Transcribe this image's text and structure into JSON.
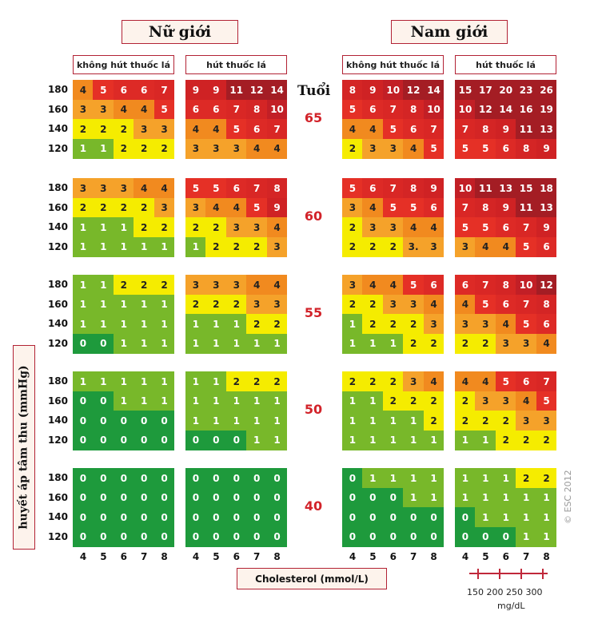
{
  "headers": {
    "female": "Nữ giới",
    "male": "Nam giới",
    "non_smoker": "không hút thuốc lá",
    "smoker": "hút thuốc lá",
    "age_title": "Tuổi"
  },
  "axes": {
    "ylabel": "huyết áp tâm thu (mmHg)",
    "xlabel": "Cholesterol (mmol/L)",
    "mgdl_ticks": "150 200 250 300",
    "mgdl_unit": "mg/dL",
    "copyright": "© ESC 2012"
  },
  "colors": {
    "0": "#1e9a3c",
    "1": "#78b82a",
    "2": "#f5ec00",
    "3": "#f5a22a",
    "4": "#f18a1f",
    "5": "#e53026",
    "6": "#dd2a26",
    "7": "#d92725",
    "8": "#d42525",
    "9": "#cf2224",
    "10": "#c21f26",
    "high": "#a41d24"
  },
  "chart_data": {
    "type": "heatmap",
    "ages": [
      "65",
      "60",
      "55",
      "50",
      "40"
    ],
    "sbp": [
      "180",
      "160",
      "140",
      "120"
    ],
    "cholesterol": [
      "4",
      "5",
      "6",
      "7",
      "8"
    ],
    "panels": {
      "female_non_smoker": {
        "65": [
          [
            4,
            5,
            6,
            6,
            7
          ],
          [
            3,
            3,
            4,
            4,
            5
          ],
          [
            2,
            2,
            2,
            3,
            3
          ],
          [
            1,
            1,
            2,
            2,
            2
          ]
        ],
        "60": [
          [
            3,
            3,
            3,
            4,
            4
          ],
          [
            2,
            2,
            2,
            2,
            3
          ],
          [
            1,
            1,
            1,
            2,
            2
          ],
          [
            1,
            1,
            1,
            1,
            1
          ]
        ],
        "55": [
          [
            1,
            1,
            2,
            2,
            2
          ],
          [
            1,
            1,
            1,
            1,
            1
          ],
          [
            1,
            1,
            1,
            1,
            1
          ],
          [
            0,
            0,
            1,
            1,
            1
          ]
        ],
        "50": [
          [
            1,
            1,
            1,
            1,
            1
          ],
          [
            0,
            0,
            1,
            1,
            1
          ],
          [
            0,
            0,
            0,
            0,
            0
          ],
          [
            0,
            0,
            0,
            0,
            0
          ]
        ],
        "40": [
          [
            0,
            0,
            0,
            0,
            0
          ],
          [
            0,
            0,
            0,
            0,
            0
          ],
          [
            0,
            0,
            0,
            0,
            0
          ],
          [
            0,
            0,
            0,
            0,
            0
          ]
        ]
      },
      "female_smoker": {
        "65": [
          [
            9,
            9,
            11,
            12,
            14
          ],
          [
            6,
            6,
            7,
            8,
            10
          ],
          [
            4,
            4,
            5,
            6,
            7
          ],
          [
            3,
            3,
            3,
            4,
            4
          ]
        ],
        "60": [
          [
            5,
            5,
            6,
            7,
            8
          ],
          [
            3,
            4,
            4,
            5,
            9
          ],
          [
            2,
            2,
            3,
            3,
            4
          ],
          [
            1,
            2,
            2,
            2,
            3
          ]
        ],
        "55": [
          [
            3,
            3,
            3,
            4,
            4
          ],
          [
            2,
            2,
            2,
            3,
            3
          ],
          [
            1,
            1,
            1,
            2,
            2
          ],
          [
            1,
            1,
            1,
            1,
            1
          ]
        ],
        "50": [
          [
            1,
            1,
            2,
            2,
            2
          ],
          [
            1,
            1,
            1,
            1,
            1
          ],
          [
            1,
            1,
            1,
            1,
            1
          ],
          [
            0,
            0,
            0,
            1,
            1
          ]
        ],
        "40": [
          [
            0,
            0,
            0,
            0,
            0
          ],
          [
            0,
            0,
            0,
            0,
            0
          ],
          [
            0,
            0,
            0,
            0,
            0
          ],
          [
            0,
            0,
            0,
            0,
            0
          ]
        ]
      },
      "male_non_smoker": {
        "65": [
          [
            8,
            9,
            10,
            12,
            14
          ],
          [
            5,
            6,
            7,
            8,
            10
          ],
          [
            4,
            4,
            5,
            6,
            7
          ],
          [
            2,
            3,
            3,
            4,
            5
          ]
        ],
        "60": [
          [
            5,
            6,
            7,
            8,
            9
          ],
          [
            3,
            4,
            5,
            5,
            6
          ],
          [
            2,
            3,
            3,
            4,
            4
          ],
          [
            2,
            2,
            2,
            "3.",
            3
          ]
        ],
        "55": [
          [
            3,
            4,
            4,
            5,
            6
          ],
          [
            2,
            2,
            3,
            3,
            4
          ],
          [
            1,
            2,
            2,
            2,
            3
          ],
          [
            1,
            1,
            1,
            2,
            2
          ]
        ],
        "50": [
          [
            2,
            2,
            2,
            3,
            4
          ],
          [
            1,
            1,
            2,
            2,
            2
          ],
          [
            1,
            1,
            1,
            1,
            2
          ],
          [
            1,
            1,
            1,
            1,
            1
          ]
        ],
        "40": [
          [
            0,
            1,
            1,
            1,
            1
          ],
          [
            0,
            0,
            0,
            1,
            1
          ],
          [
            0,
            0,
            0,
            0,
            0
          ],
          [
            0,
            0,
            0,
            0,
            0
          ]
        ]
      },
      "male_smoker": {
        "65": [
          [
            15,
            17,
            20,
            23,
            26
          ],
          [
            10,
            12,
            14,
            16,
            19
          ],
          [
            7,
            8,
            9,
            11,
            13
          ],
          [
            5,
            5,
            6,
            8,
            9
          ]
        ],
        "60": [
          [
            10,
            11,
            13,
            15,
            18
          ],
          [
            7,
            8,
            9,
            11,
            13
          ],
          [
            5,
            5,
            6,
            7,
            9
          ],
          [
            3,
            4,
            4,
            5,
            6
          ]
        ],
        "55": [
          [
            6,
            7,
            8,
            10,
            12
          ],
          [
            4,
            5,
            6,
            7,
            8
          ],
          [
            3,
            3,
            4,
            5,
            6
          ],
          [
            2,
            2,
            3,
            3,
            4
          ]
        ],
        "50": [
          [
            4,
            4,
            5,
            6,
            7
          ],
          [
            2,
            3,
            3,
            4,
            5
          ],
          [
            2,
            2,
            2,
            3,
            3
          ],
          [
            1,
            1,
            2,
            2,
            2
          ]
        ],
        "40": [
          [
            1,
            1,
            1,
            2,
            2
          ],
          [
            1,
            1,
            1,
            1,
            1
          ],
          [
            0,
            1,
            1,
            1,
            1
          ],
          [
            0,
            0,
            0,
            1,
            1
          ]
        ]
      }
    }
  }
}
